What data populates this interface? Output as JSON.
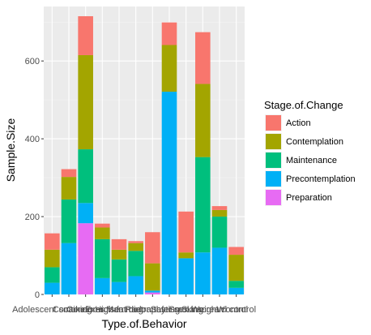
{
  "chart_data": {
    "type": "bar",
    "stacked": true,
    "xlabel": "Type.of.Behavior",
    "ylabel": "Sample.Size",
    "ylim": [
      0,
      740
    ],
    "yticks": [
      0,
      200,
      400,
      600
    ],
    "grid": true,
    "legend_position": "right",
    "legend_title": "Stage.of.Change",
    "categories": [
      "Adolescent smoking",
      "Cocaine",
      "Condoms",
      "Exercise",
      "High-fat diet",
      "Mammography",
      "Radon testing",
      "Safer sex",
      "Smoking",
      "Sunscreen",
      "Weight control",
      "Wl control"
    ],
    "series": [
      {
        "name": "Preparation",
        "color": "#E76BF3",
        "values": [
          0,
          0,
          183,
          0,
          0,
          0,
          5,
          0,
          0,
          0,
          0,
          0
        ]
      },
      {
        "name": "Precontemplation",
        "color": "#00B0F6",
        "values": [
          30,
          132,
          52,
          42,
          32,
          47,
          5,
          521,
          93,
          108,
          120,
          17
        ]
      },
      {
        "name": "Maintenance",
        "color": "#00BF7D",
        "values": [
          40,
          112,
          138,
          100,
          58,
          65,
          0,
          0,
          0,
          245,
          80,
          18
        ]
      },
      {
        "name": "Contemplation",
        "color": "#A3A500",
        "values": [
          45,
          58,
          242,
          30,
          25,
          20,
          70,
          120,
          15,
          188,
          17,
          67
        ]
      },
      {
        "name": "Action",
        "color": "#F8766D",
        "values": [
          42,
          20,
          100,
          10,
          27,
          5,
          80,
          58,
          105,
          133,
          10,
          20
        ]
      }
    ]
  }
}
